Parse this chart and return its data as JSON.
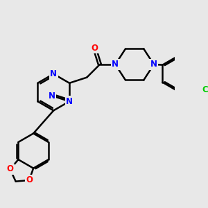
{
  "background_color": "#e8e8e8",
  "bond_color": "#000000",
  "bond_width": 1.8,
  "atom_colors": {
    "N": "#0000ff",
    "O": "#ff0000",
    "Cl": "#00cc00",
    "C": "#000000"
  },
  "font_size_atom": 8.5,
  "figsize": [
    3.0,
    3.0
  ],
  "dpi": 100
}
